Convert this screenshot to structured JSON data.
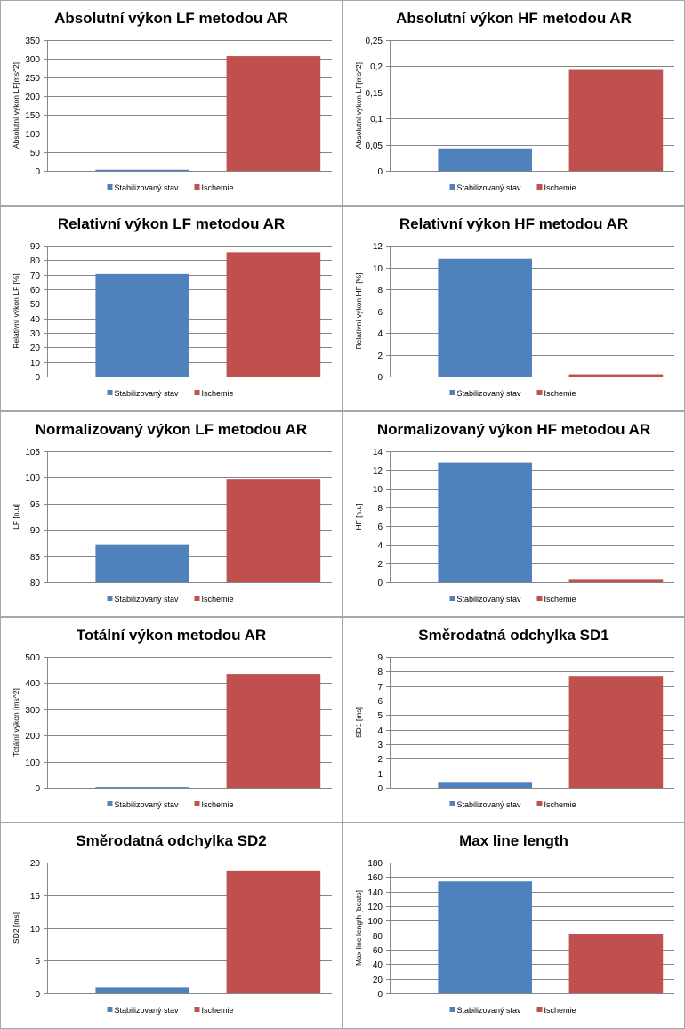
{
  "colors": {
    "stabilized": "#4f81bd",
    "ischemia": "#c0504d",
    "grid": "#868686"
  },
  "legend": {
    "stabilized": "Stabilizovaný stav",
    "ischemia": "Ischemie"
  },
  "chart_data": [
    {
      "type": "bar",
      "title": "Absolutní výkon LF metodou AR",
      "ylabel": "Absolutní výkon LF[ms^2]",
      "categories": [
        "Stabilizovaný stav",
        "Ischemie"
      ],
      "values": [
        3,
        307
      ],
      "ylim": [
        0,
        350
      ],
      "ticks": [
        0,
        50,
        100,
        150,
        200,
        250,
        300,
        350
      ],
      "tick_labels": [
        "0",
        "50",
        "100",
        "150",
        "200",
        "250",
        "300",
        "350"
      ]
    },
    {
      "type": "bar",
      "title": "Absolutní výkon HF metodou AR",
      "ylabel": "Absolutní výkon LF[ms^2]",
      "categories": [
        "Stabilizovaný stav",
        "Ischemie"
      ],
      "values": [
        0.043,
        0.193
      ],
      "ylim": [
        0,
        0.25
      ],
      "ticks": [
        0,
        0.05,
        0.1,
        0.15,
        0.2,
        0.25
      ],
      "tick_labels": [
        "0",
        "0,05",
        "0,1",
        "0,15",
        "0,2",
        "0,25"
      ]
    },
    {
      "type": "bar",
      "title": "Relativní výkon LF metodou AR",
      "ylabel": "Relativní výkon LF [%]",
      "categories": [
        "Stabilizovaný stav",
        "Ischemie"
      ],
      "values": [
        70.5,
        85.5
      ],
      "ylim": [
        0,
        90
      ],
      "ticks": [
        0,
        10,
        20,
        30,
        40,
        50,
        60,
        70,
        80,
        90
      ],
      "tick_labels": [
        "0",
        "10",
        "20",
        "30",
        "40",
        "50",
        "60",
        "70",
        "80",
        "90"
      ]
    },
    {
      "type": "bar",
      "title": "Relativní výkon HF metodou AR",
      "ylabel": "Relativní výkon HF [%]",
      "categories": [
        "Stabilizovaný stav",
        "Ischemie"
      ],
      "values": [
        10.8,
        0.2
      ],
      "ylim": [
        0,
        12
      ],
      "ticks": [
        0,
        2,
        4,
        6,
        8,
        10,
        12
      ],
      "tick_labels": [
        "0",
        "2",
        "4",
        "6",
        "8",
        "10",
        "12"
      ]
    },
    {
      "type": "bar",
      "title": "Normalizovaný výkon LF metodou AR",
      "ylabel": "LF [n.u]",
      "categories": [
        "Stabilizovaný stav",
        "Ischemie"
      ],
      "values": [
        87.2,
        99.7
      ],
      "ylim": [
        80,
        105
      ],
      "ticks": [
        80,
        85,
        90,
        95,
        100,
        105
      ],
      "tick_labels": [
        "80",
        "85",
        "90",
        "95",
        "100",
        "105"
      ]
    },
    {
      "type": "bar",
      "title": "Normalizovaný výkon HF metodou AR",
      "ylabel": "HF [n.u]",
      "categories": [
        "Stabilizovaný stav",
        "Ischemie"
      ],
      "values": [
        12.8,
        0.25
      ],
      "ylim": [
        0,
        14
      ],
      "ticks": [
        0,
        2,
        4,
        6,
        8,
        10,
        12,
        14
      ],
      "tick_labels": [
        "0",
        "2",
        "4",
        "6",
        "8",
        "10",
        "12",
        "14"
      ]
    },
    {
      "type": "bar",
      "title": "Totální výkon metodou AR",
      "ylabel": "Totální výkon [ms^2]",
      "categories": [
        "Stabilizovaný stav",
        "Ischemie"
      ],
      "values": [
        3,
        435
      ],
      "ylim": [
        0,
        500
      ],
      "ticks": [
        0,
        100,
        200,
        300,
        400,
        500
      ],
      "tick_labels": [
        "0",
        "100",
        "200",
        "300",
        "400",
        "500"
      ]
    },
    {
      "type": "bar",
      "title": "Směrodatná odchylka SD1",
      "ylabel": "SD1 [ms]",
      "categories": [
        "Stabilizovaný stav",
        "Ischemie"
      ],
      "values": [
        0.35,
        7.7
      ],
      "ylim": [
        0,
        9
      ],
      "ticks": [
        0,
        1,
        2,
        3,
        4,
        5,
        6,
        7,
        8,
        9
      ],
      "tick_labels": [
        "0",
        "1",
        "2",
        "3",
        "4",
        "5",
        "6",
        "7",
        "8",
        "9"
      ]
    },
    {
      "type": "bar",
      "title": "Směrodatná odchylka SD2",
      "ylabel": "SD2 [ms]",
      "categories": [
        "Stabilizovaný stav",
        "Ischemie"
      ],
      "values": [
        0.9,
        18.8
      ],
      "ylim": [
        0,
        20
      ],
      "ticks": [
        0,
        5,
        10,
        15,
        20
      ],
      "tick_labels": [
        "0",
        "5",
        "10",
        "15",
        "20"
      ]
    },
    {
      "type": "bar",
      "title": "Max line length",
      "ylabel": "Max line length [beats]",
      "categories": [
        "Stabilizovaný stav",
        "Ischemie"
      ],
      "values": [
        154,
        82
      ],
      "ylim": [
        0,
        180
      ],
      "ticks": [
        0,
        20,
        40,
        60,
        80,
        100,
        120,
        140,
        160,
        180
      ],
      "tick_labels": [
        "0",
        "20",
        "40",
        "60",
        "80",
        "100",
        "120",
        "140",
        "160",
        "180"
      ]
    }
  ]
}
